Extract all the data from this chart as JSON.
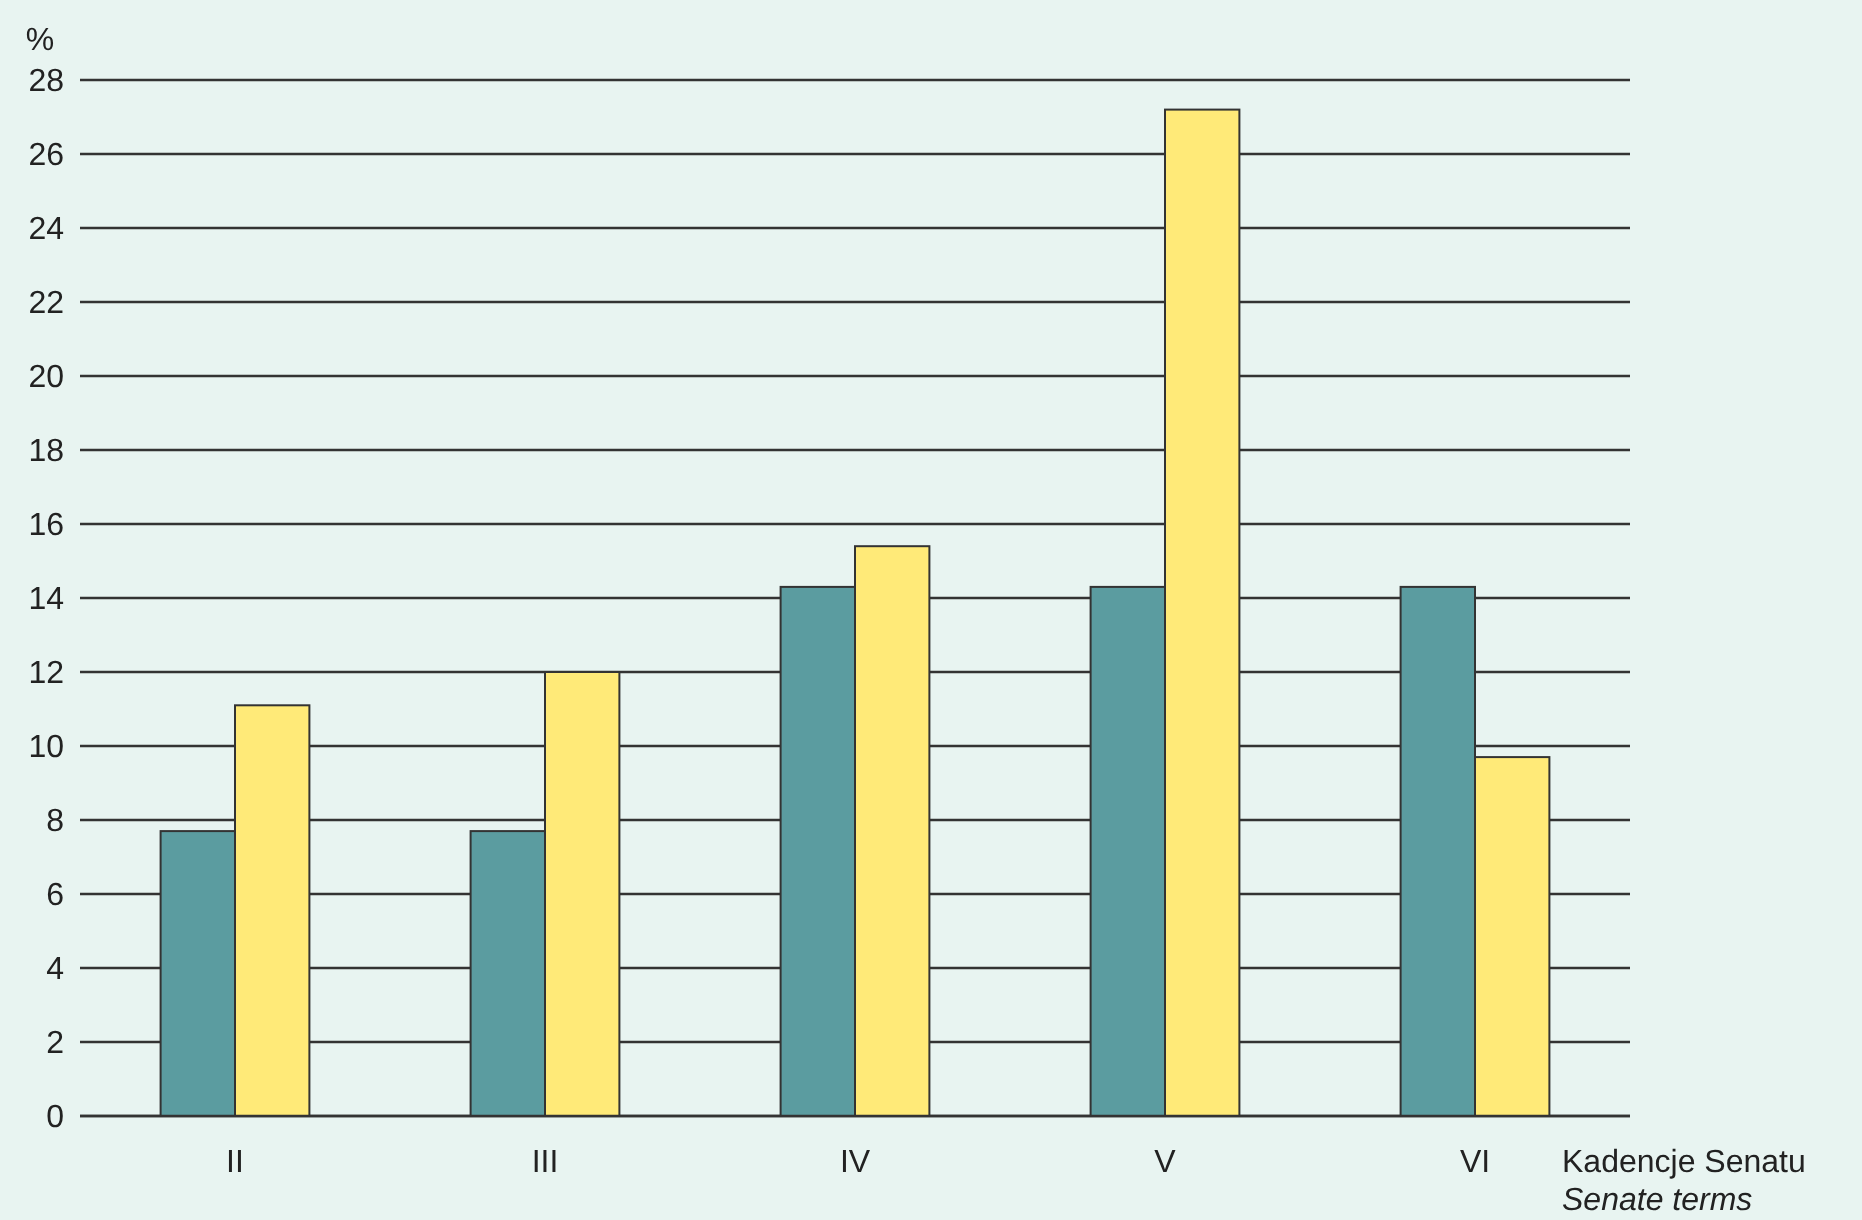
{
  "chart_data": {
    "type": "bar",
    "xlabel": "Kadencje Senatu\nSenate terms",
    "ylabel": "%",
    "categories": [
      "II",
      "III",
      "IV",
      "V",
      "VI"
    ],
    "series": [
      {
        "color": "#5b9ca0",
        "values": [
          7.7,
          7.7,
          14.3,
          14.3,
          14.3
        ]
      },
      {
        "color": "#ffea78",
        "values": [
          11.1,
          12.0,
          15.4,
          27.2,
          9.7
        ]
      }
    ],
    "ylim": [
      0,
      28
    ],
    "yticks": [
      0,
      2,
      4,
      6,
      8,
      10,
      12,
      14,
      16,
      18,
      20,
      22,
      24,
      26,
      28
    ],
    "grid": "y"
  }
}
